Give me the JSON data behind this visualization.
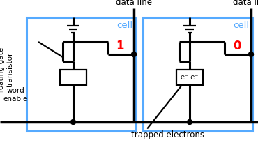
{
  "bg_color": "#ffffff",
  "box_color": "#55aaff",
  "line_color": "#000000",
  "red_color": "#ff0000",
  "blue_text_color": "#55aaff",
  "cell1_label": "1",
  "cell2_label": "0",
  "text_data_line": "data line",
  "text_cell": "cell",
  "text_trapped": "trapped electrons",
  "text_electrons": "e⁻ e⁻",
  "text_floating_gate": "floating-gate\ntransistor",
  "text_word_enable": "word\nenable",
  "figsize": [
    3.7,
    2.08
  ],
  "dpi": 100
}
